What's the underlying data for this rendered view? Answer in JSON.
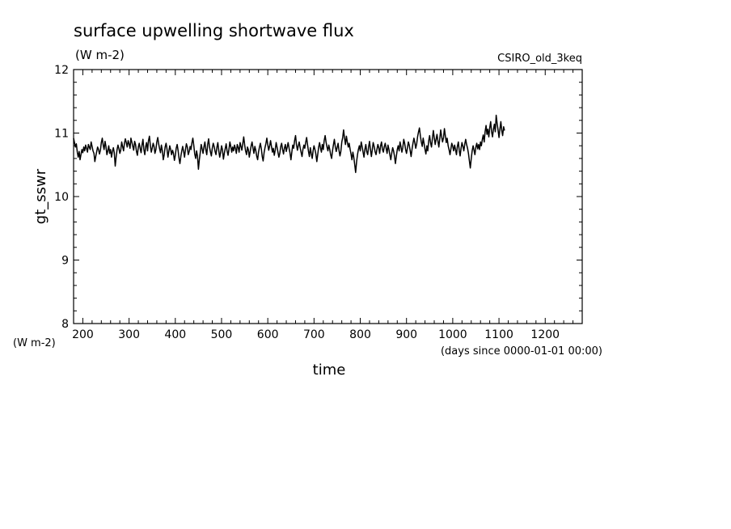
{
  "chart_data": {
    "type": "line",
    "title": "surface upwelling shortwave flux",
    "subtitle": "(W m-2)",
    "dataset_label": "CSIRO_old_3keq",
    "xlabel": "time",
    "x_units": "(days since 0000-01-01 00:00)",
    "ylabel": "gt_sswr",
    "y_units": "(W m-2)",
    "xlim": [
      180,
      1280
    ],
    "ylim": [
      8,
      12
    ],
    "x_ticks": [
      200,
      300,
      400,
      500,
      600,
      700,
      800,
      900,
      1000,
      1100,
      1200
    ],
    "y_ticks": [
      8,
      9,
      10,
      11,
      12
    ],
    "grid": false,
    "legend": "none",
    "line_color": "#000000",
    "series": [
      {
        "x_start": 180,
        "x_step": 2,
        "values": [
          10.92,
          10.85,
          10.78,
          10.83,
          10.7,
          10.62,
          10.71,
          10.58,
          10.66,
          10.74,
          10.69,
          10.78,
          10.72,
          10.81,
          10.76,
          10.7,
          10.82,
          10.78,
          10.74,
          10.86,
          10.79,
          10.72,
          10.68,
          10.55,
          10.63,
          10.71,
          10.78,
          10.74,
          10.67,
          10.73,
          10.85,
          10.92,
          10.81,
          10.74,
          10.87,
          10.79,
          10.66,
          10.72,
          10.8,
          10.68,
          10.74,
          10.62,
          10.71,
          10.77,
          10.69,
          10.48,
          10.62,
          10.74,
          10.81,
          10.76,
          10.68,
          10.73,
          10.86,
          10.79,
          10.72,
          10.84,
          10.91,
          10.85,
          10.78,
          10.88,
          10.83,
          10.76,
          10.92,
          10.86,
          10.79,
          10.73,
          10.87,
          10.82,
          10.71,
          10.65,
          10.78,
          10.84,
          10.76,
          10.69,
          10.81,
          10.9,
          10.74,
          10.66,
          10.79,
          10.85,
          10.72,
          10.88,
          10.95,
          10.81,
          10.7,
          10.76,
          10.84,
          10.79,
          10.68,
          10.74,
          10.86,
          10.93,
          10.83,
          10.75,
          10.69,
          10.81,
          10.72,
          10.58,
          10.66,
          10.78,
          10.84,
          10.75,
          10.62,
          10.71,
          10.8,
          10.74,
          10.66,
          10.73,
          10.68,
          10.57,
          10.65,
          10.76,
          10.82,
          10.73,
          10.6,
          10.52,
          10.64,
          10.72,
          10.79,
          10.71,
          10.62,
          10.74,
          10.83,
          10.78,
          10.66,
          10.71,
          10.79,
          10.74,
          10.85,
          10.92,
          10.8,
          10.67,
          10.6,
          10.72,
          10.64,
          10.43,
          10.58,
          10.7,
          10.82,
          10.75,
          10.68,
          10.79,
          10.86,
          10.74,
          10.66,
          10.82,
          10.91,
          10.78,
          10.7,
          10.64,
          10.76,
          10.84,
          10.79,
          10.71,
          10.66,
          10.78,
          10.85,
          10.72,
          10.62,
          10.69,
          10.8,
          10.74,
          10.59,
          10.68,
          10.76,
          10.83,
          10.72,
          10.65,
          10.74,
          10.86,
          10.79,
          10.7,
          10.78,
          10.72,
          10.81,
          10.76,
          10.68,
          10.82,
          10.77,
          10.7,
          10.85,
          10.79,
          10.73,
          10.84,
          10.94,
          10.81,
          10.72,
          10.66,
          10.78,
          10.74,
          10.62,
          10.71,
          10.8,
          10.86,
          10.76,
          10.68,
          10.79,
          10.73,
          10.64,
          10.58,
          10.7,
          10.78,
          10.84,
          10.75,
          10.63,
          10.56,
          10.69,
          10.77,
          10.84,
          10.92,
          10.81,
          10.73,
          10.8,
          10.88,
          10.79,
          10.7,
          10.76,
          10.65,
          10.73,
          10.85,
          10.78,
          10.7,
          10.62,
          10.68,
          10.79,
          10.84,
          10.74,
          10.67,
          10.76,
          10.82,
          10.71,
          10.78,
          10.85,
          10.76,
          10.69,
          10.58,
          10.7,
          10.81,
          10.76,
          10.88,
          10.96,
          10.82,
          10.73,
          10.8,
          10.86,
          10.77,
          10.7,
          10.63,
          10.74,
          10.81,
          10.76,
          10.86,
          10.93,
          10.82,
          10.71,
          10.63,
          10.77,
          10.68,
          10.6,
          10.72,
          10.8,
          10.74,
          10.67,
          10.55,
          10.66,
          10.78,
          10.85,
          10.76,
          10.7,
          10.82,
          10.74,
          10.88,
          10.96,
          10.86,
          10.78,
          10.72,
          10.81,
          10.74,
          10.66,
          10.6,
          10.72,
          10.82,
          10.9,
          10.79,
          10.71,
          10.77,
          10.84,
          10.73,
          10.64,
          10.71,
          10.86,
          10.93,
          11.05,
          10.92,
          10.82,
          10.95,
          10.86,
          10.78,
          10.84,
          10.75,
          10.67,
          10.58,
          10.7,
          10.62,
          10.5,
          10.38,
          10.55,
          10.66,
          10.74,
          10.8,
          10.72,
          10.86,
          10.79,
          10.7,
          10.62,
          10.74,
          10.82,
          10.71,
          10.66,
          10.78,
          10.87,
          10.74,
          10.63,
          10.74,
          10.85,
          10.79,
          10.71,
          10.66,
          10.74,
          10.82,
          10.77,
          10.68,
          10.8,
          10.86,
          10.74,
          10.7,
          10.79,
          10.84,
          10.76,
          10.68,
          10.81,
          10.74,
          10.66,
          10.58,
          10.68,
          10.77,
          10.72,
          10.64,
          10.52,
          10.63,
          10.74,
          10.8,
          10.72,
          10.86,
          10.79,
          10.7,
          10.77,
          10.9,
          10.84,
          10.74,
          10.68,
          10.77,
          10.86,
          10.81,
          10.72,
          10.63,
          10.75,
          10.84,
          10.92,
          10.85,
          10.76,
          10.83,
          10.94,
          11.02,
          11.08,
          10.95,
          10.86,
          10.79,
          10.92,
          10.84,
          10.74,
          10.67,
          10.8,
          10.72,
          10.88,
          10.96,
          10.85,
          10.78,
          10.91,
          11.04,
          10.93,
          10.82,
          10.9,
          10.98,
          10.87,
          10.78,
          10.92,
          11.05,
          10.94,
          10.86,
          10.93,
          11.07,
          10.96,
          10.85,
          10.92,
          10.8,
          10.74,
          10.66,
          10.75,
          10.84,
          10.79,
          10.72,
          10.81,
          10.74,
          10.66,
          10.79,
          10.86,
          10.73,
          10.64,
          10.76,
          10.85,
          10.79,
          10.72,
          10.83,
          10.9,
          10.82,
          10.76,
          10.68,
          10.56,
          10.45,
          10.6,
          10.72,
          10.8,
          10.73,
          10.66,
          10.78,
          10.84,
          10.75,
          10.82,
          10.74,
          10.86,
          10.8,
          10.9,
          10.97,
          10.86,
          11.02,
          11.12,
          10.98,
          11.06,
          10.94,
          11.08,
          11.18,
          11.02,
          10.94,
          11.06,
          11.14,
          11.02,
          11.28,
          11.15,
          11.05,
          10.93,
          11.06,
          11.18,
          11.04,
          10.96,
          11.1,
          11.04
        ]
      }
    ]
  }
}
